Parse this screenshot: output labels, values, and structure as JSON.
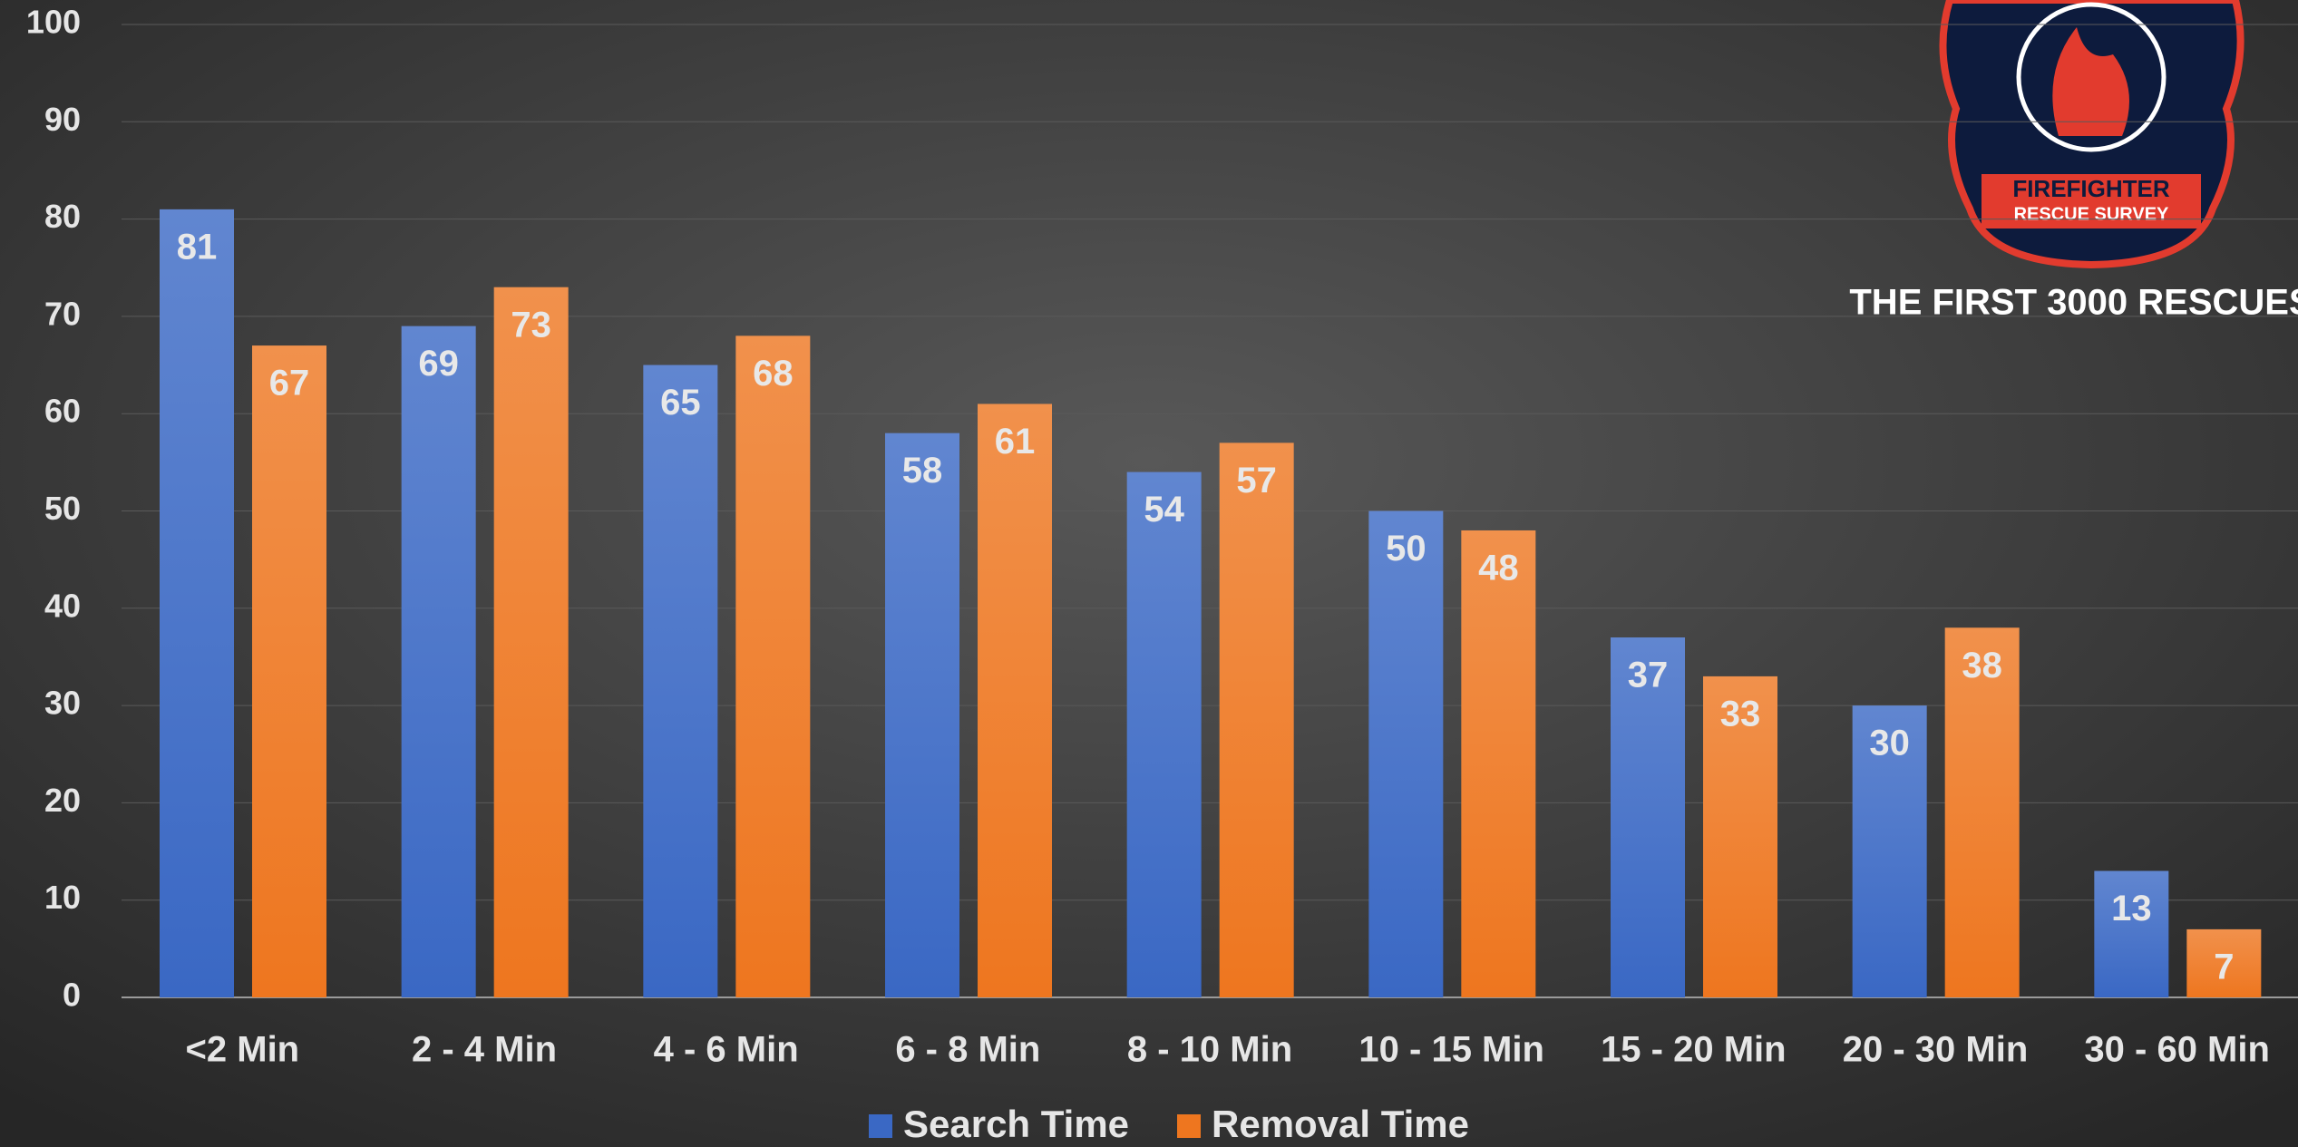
{
  "chart_data": {
    "type": "bar",
    "subtitle": "THE FIRST 3000 RESCUES",
    "categories": [
      "<2 Min",
      "2 - 4 Min",
      "4 - 6 Min",
      "6 - 8 Min",
      "8 - 10 Min",
      "10 - 15 Min",
      "15 - 20 Min",
      "20 - 30 Min",
      "30 - 60 Min"
    ],
    "series": [
      {
        "name": "Search Time",
        "color": "#3a68c4",
        "values": [
          81,
          69,
          65,
          58,
          54,
          50,
          37,
          30,
          13
        ]
      },
      {
        "name": "Removal Time",
        "color": "#ee761f",
        "values": [
          67,
          73,
          68,
          61,
          57,
          48,
          33,
          38,
          7
        ]
      }
    ],
    "ylim": [
      0,
      100
    ],
    "yticks": [
      0,
      10,
      20,
      30,
      40,
      50,
      60,
      70,
      80,
      90,
      100
    ],
    "grid": true,
    "legend": "bottom"
  },
  "logo": {
    "title": "FIREFIGHTER",
    "subtitle": "RESCUE SURVEY"
  }
}
